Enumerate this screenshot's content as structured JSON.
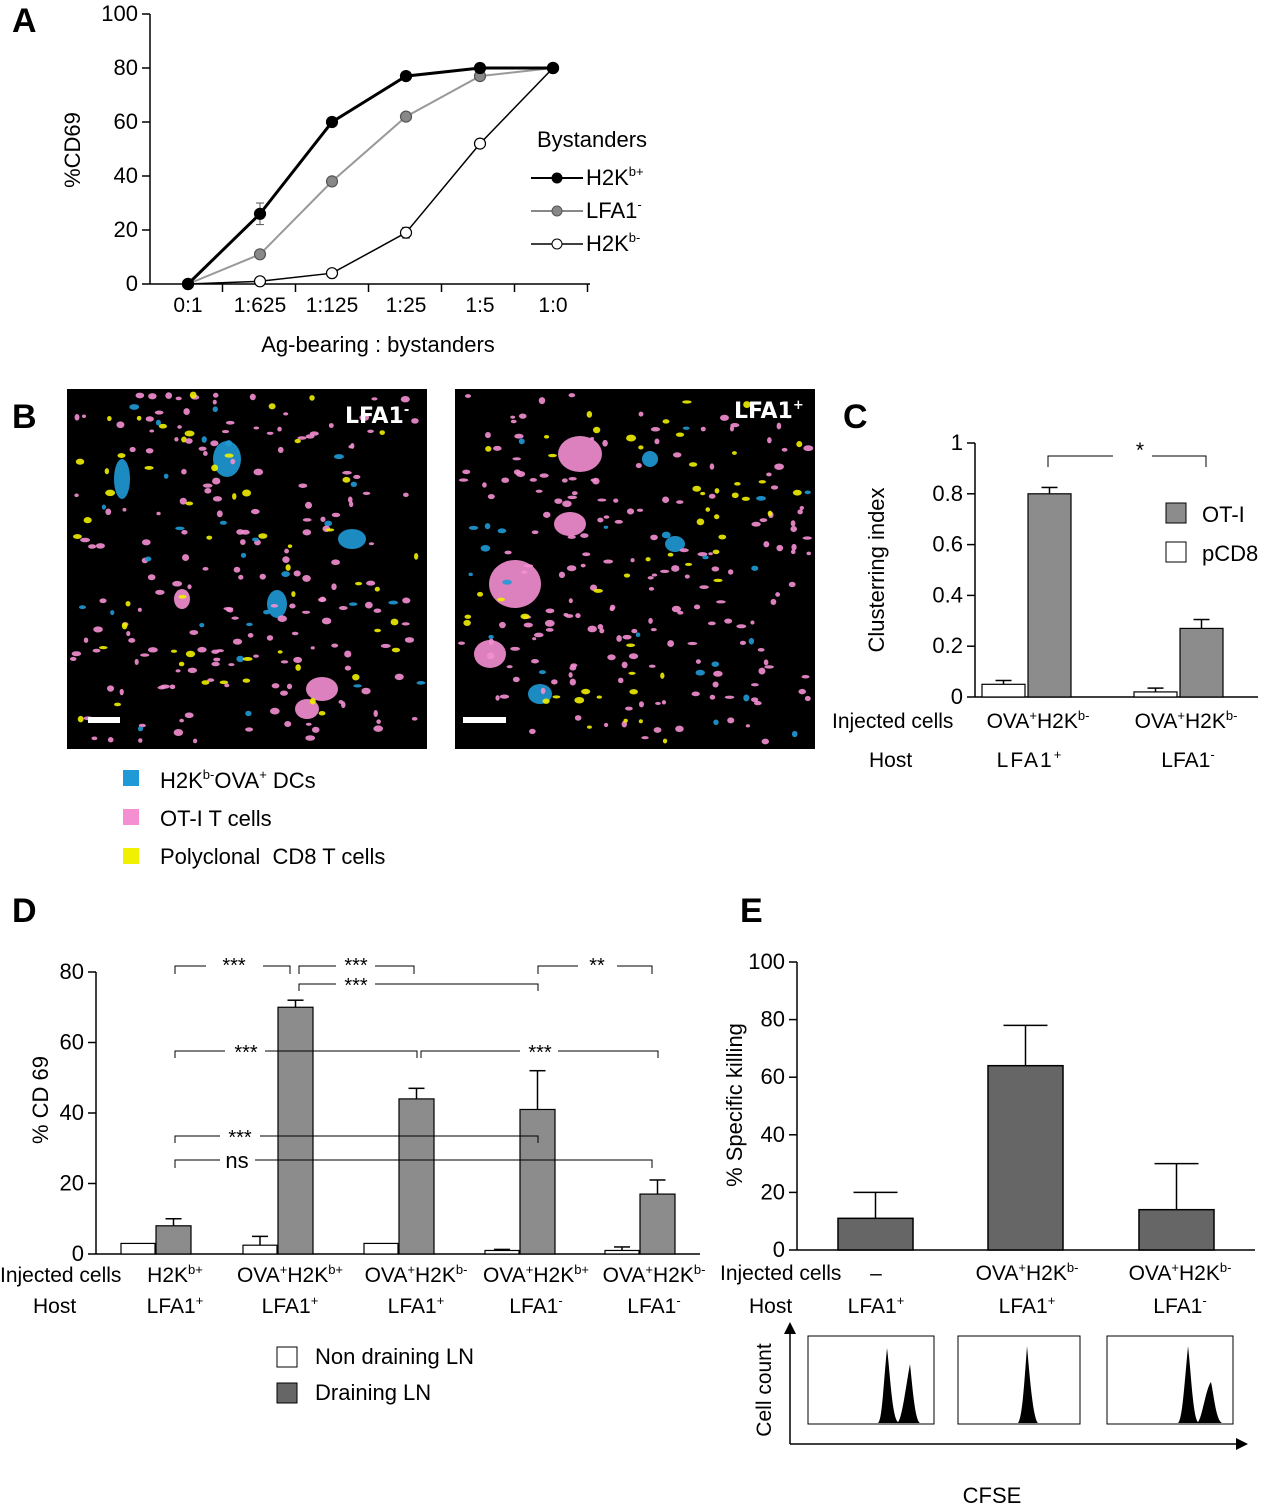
{
  "panel_labels": {
    "a": "A",
    "b": "B",
    "c": "C",
    "d": "D",
    "e": "E"
  },
  "panel_a": {
    "ylabel": "%CD69",
    "xlabel": "Ag-bearing : bystanders",
    "legend_title": "Bystanders",
    "legend": [
      {
        "base": "H2K",
        "sup": "b+"
      },
      {
        "base": "LFA1",
        "sup": "-"
      },
      {
        "base": "H2K",
        "sup": "b-"
      }
    ],
    "colors": {
      "H2Kb+": "#000000",
      "LFA1-": "#888888",
      "H2Kb-": "#000000"
    },
    "yticks": [
      "0",
      "20",
      "40",
      "60",
      "80",
      "100"
    ]
  },
  "panel_b": {
    "image1_label": "LFA1",
    "image1_sup": "-",
    "image2_label": "LFA1",
    "image2_sup": "+",
    "legend": [
      {
        "text_a": "H2K",
        "sup_a": "b-",
        "text_b": "OVA",
        "sup_b": "+",
        "text_c": " DCs",
        "color": "#1f9ad6"
      },
      {
        "text": "OT-I T cells",
        "color": "#f48fd1"
      },
      {
        "text": "Polyclonal  CD8 T cells",
        "color": "#f0f000"
      }
    ]
  },
  "panel_c": {
    "ylabel": "Clusterring index",
    "yticks": [
      "0",
      "0.2",
      "0.4",
      "0.6",
      "0.8",
      "1"
    ],
    "row_labels": [
      "Injected cells",
      "Host"
    ],
    "groups": [
      {
        "injected": "OVA",
        "inj_sup1": "+",
        "inj_mid": "H2K",
        "inj_sup2": "b-",
        "host": "LFA1",
        "host_sup": "+"
      },
      {
        "injected": "OVA",
        "inj_sup1": "+",
        "inj_mid": "H2K",
        "inj_sup2": "b-",
        "host": "LFA1",
        "host_sup": "-"
      }
    ],
    "legend": [
      "OT-I",
      "pCD8"
    ],
    "sig": "*"
  },
  "panel_d": {
    "ylabel": "% CD 69",
    "yticks": [
      "0",
      "20",
      "40",
      "60",
      "80"
    ],
    "row_labels": [
      "Injected cells",
      "Host"
    ],
    "groups": [
      {
        "inj_a": "H2K",
        "inj_sup_a": "b+",
        "inj_b": "",
        "inj_sup_b": "",
        "host": "LFA1",
        "host_sup": "+"
      },
      {
        "inj_a": "OVA",
        "inj_sup_a": "+",
        "inj_b": "H2K",
        "inj_sup_b": "b+",
        "host": "LFA1",
        "host_sup": "+"
      },
      {
        "inj_a": "OVA",
        "inj_sup_a": "+",
        "inj_b": "H2K",
        "inj_sup_b": "b-",
        "host": "LFA1",
        "host_sup": "+"
      },
      {
        "inj_a": "OVA",
        "inj_sup_a": "+",
        "inj_b": "H2K",
        "inj_sup_b": "b+",
        "host": "LFA1",
        "host_sup": "-"
      },
      {
        "inj_a": "OVA",
        "inj_sup_a": "+",
        "inj_b": "H2K",
        "inj_sup_b": "b-",
        "host": "LFA1",
        "host_sup": "-"
      }
    ],
    "legend": [
      "Non draining LN",
      "Draining LN"
    ],
    "sig": [
      "***",
      "***",
      "**",
      "***",
      "***",
      "***",
      "***",
      "ns"
    ]
  },
  "panel_e": {
    "ylabel": "% Specific killing",
    "yticks": [
      "0",
      "20",
      "40",
      "60",
      "80",
      "100"
    ],
    "row_labels": [
      "Injected cells",
      "Host"
    ],
    "groups": [
      {
        "inj_a": "–",
        "inj_sup_a": "",
        "inj_b": "",
        "inj_sup_b": "",
        "host": "LFA1",
        "host_sup": "+"
      },
      {
        "inj_a": "OVA",
        "inj_sup_a": "+",
        "inj_b": "H2K",
        "inj_sup_b": "b-",
        "host": "LFA1",
        "host_sup": "+"
      },
      {
        "inj_a": "OVA",
        "inj_sup_a": "+",
        "inj_b": "H2K",
        "inj_sup_b": "b-",
        "host": "LFA1",
        "host_sup": "-"
      }
    ],
    "hist_ylabel": "Cell count",
    "hist_xlabel": "CFSE"
  },
  "chart_data": [
    {
      "type": "line",
      "panel": "A",
      "x": [
        "0:1",
        "1:625",
        "1:125",
        "1:25",
        "1:5",
        "1:0"
      ],
      "ylim": [
        0,
        100
      ],
      "ylabel": "%CD69",
      "xlabel": "Ag-bearing : bystanders",
      "legend_title": "Bystanders",
      "series": [
        {
          "name": "H2Kb+",
          "values": [
            0,
            26,
            60,
            77,
            80,
            80
          ],
          "err": [
            0,
            4,
            0,
            0,
            0,
            0
          ]
        },
        {
          "name": "LFA1-",
          "values": [
            0,
            11,
            38,
            62,
            77,
            80
          ],
          "err": [
            0,
            0,
            0,
            0,
            0,
            0
          ]
        },
        {
          "name": "H2Kb-",
          "values": [
            0,
            1,
            4,
            19,
            52,
            80
          ],
          "err": [
            0,
            0,
            0,
            2,
            0,
            0
          ]
        }
      ]
    },
    {
      "type": "bar",
      "panel": "C",
      "categories": [
        "OVA+H2Kb- / LFA1+",
        "OVA+H2Kb- / LFA1-"
      ],
      "ylim": [
        0,
        1
      ],
      "ylabel": "Clusterring index",
      "series": [
        {
          "name": "pCD8",
          "values": [
            0.05,
            0.02
          ],
          "err": [
            0.015,
            0.015
          ],
          "color": "#ffffff"
        },
        {
          "name": "OT-I",
          "values": [
            0.8,
            0.27
          ],
          "err": [
            0.025,
            0.035
          ],
          "color": "#8c8c8c"
        }
      ]
    },
    {
      "type": "bar",
      "panel": "D",
      "categories": [
        "H2Kb+ / LFA1+",
        "OVA+H2Kb+ / LFA1+",
        "OVA+H2Kb- / LFA1+",
        "OVA+H2Kb+ / LFA1-",
        "OVA+H2Kb- / LFA1-"
      ],
      "ylim": [
        0,
        80
      ],
      "ylabel": "% CD 69",
      "series": [
        {
          "name": "Non draining LN",
          "values": [
            3,
            2.5,
            3,
            1,
            1
          ],
          "err": [
            0,
            2.5,
            0,
            0.3,
            1
          ],
          "color": "#ffffff"
        },
        {
          "name": "Draining LN",
          "values": [
            8,
            70,
            44,
            41,
            17
          ],
          "err": [
            2,
            2,
            3,
            11,
            4
          ],
          "color": "#8c8c8c"
        }
      ]
    },
    {
      "type": "bar",
      "panel": "E",
      "categories": [
        "– / LFA1+",
        "OVA+H2Kb- / LFA1+",
        "OVA+H2Kb- / LFA1-"
      ],
      "ylim": [
        0,
        100
      ],
      "ylabel": "% Specific killing",
      "series": [
        {
          "name": "",
          "values": [
            11,
            64,
            14
          ],
          "err": [
            9,
            14,
            16
          ],
          "color": "#666666"
        }
      ]
    }
  ]
}
